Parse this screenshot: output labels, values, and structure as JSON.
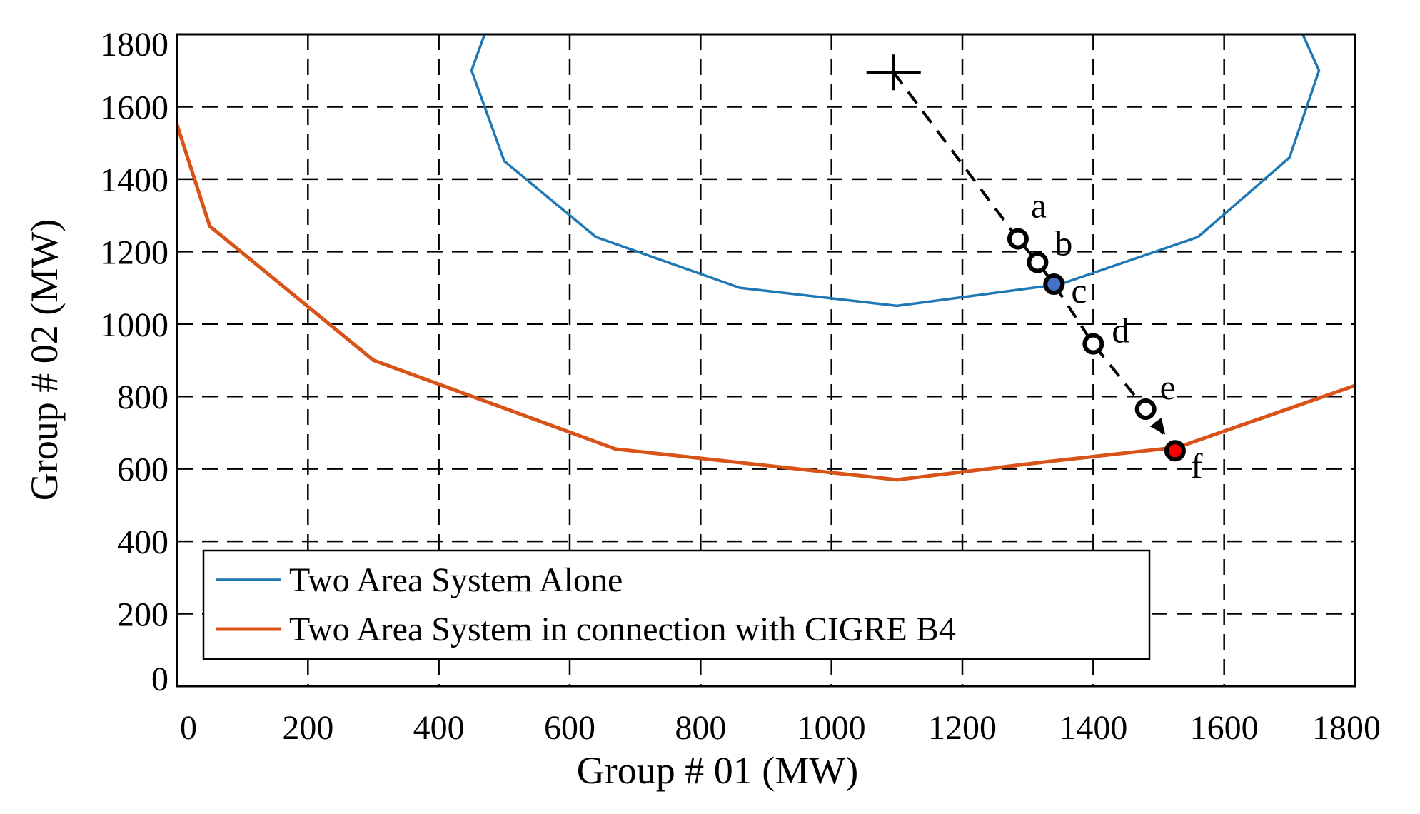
{
  "chart_data": {
    "type": "line",
    "title": "",
    "xlabel": "Group # 01 (MW)",
    "ylabel": "Group # 02 (MW)",
    "xlim": [
      0,
      1800
    ],
    "ylim": [
      0,
      1800
    ],
    "x_ticks": [
      0,
      200,
      400,
      600,
      800,
      1000,
      1200,
      1400,
      1600,
      1800
    ],
    "y_ticks": [
      0,
      200,
      400,
      600,
      800,
      1000,
      1200,
      1400,
      1600,
      1800
    ],
    "grid": true,
    "grid_style": "dashed",
    "legend_position": "bottom-left",
    "series": [
      {
        "name": "Two Area System Alone",
        "color": "#1f77b4",
        "points": [
          [
            470,
            1800
          ],
          [
            450,
            1700
          ],
          [
            500,
            1450
          ],
          [
            640,
            1240
          ],
          [
            860,
            1100
          ],
          [
            1100,
            1050
          ],
          [
            1350,
            1110
          ],
          [
            1560,
            1240
          ],
          [
            1700,
            1460
          ],
          [
            1745,
            1700
          ],
          [
            1720,
            1800
          ]
        ]
      },
      {
        "name": "Two Area System in connection with CIGRE B4",
        "color": "#d95319",
        "points": [
          [
            0,
            1550
          ],
          [
            50,
            1270
          ],
          [
            300,
            900
          ],
          [
            670,
            655
          ],
          [
            1100,
            570
          ],
          [
            1330,
            620
          ],
          [
            1530,
            660
          ],
          [
            1800,
            830
          ]
        ]
      }
    ],
    "trajectory": {
      "start_marker": [
        1095,
        1695
      ],
      "path": [
        [
          1095,
          1695
        ],
        [
          1285,
          1235
        ],
        [
          1315,
          1170
        ],
        [
          1340,
          1110
        ],
        [
          1400,
          945
        ],
        [
          1480,
          765
        ],
        [
          1525,
          650
        ]
      ],
      "arrow_tip": [
        1510,
        695
      ],
      "points": [
        {
          "label": "a",
          "x": 1285,
          "y": 1235,
          "fill": "#ffffff"
        },
        {
          "label": "b",
          "x": 1315,
          "y": 1170,
          "fill": "#ffffff"
        },
        {
          "label": "c",
          "x": 1340,
          "y": 1110,
          "fill": "#4472c4"
        },
        {
          "label": "d",
          "x": 1400,
          "y": 945,
          "fill": "#ffffff"
        },
        {
          "label": "e",
          "x": 1480,
          "y": 765,
          "fill": "#ffffff"
        },
        {
          "label": "f",
          "x": 1525,
          "y": 650,
          "fill": "#ff0000"
        }
      ]
    }
  }
}
